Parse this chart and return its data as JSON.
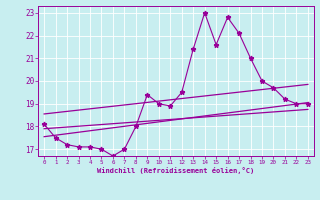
{
  "xlabel": "Windchill (Refroidissement éolien,°C)",
  "background_color": "#c8eef0",
  "line_color": "#990099",
  "xlim": [
    -0.5,
    23.5
  ],
  "ylim": [
    16.7,
    23.3
  ],
  "yticks": [
    17,
    18,
    19,
    20,
    21,
    22,
    23
  ],
  "xticks": [
    0,
    1,
    2,
    3,
    4,
    5,
    6,
    7,
    8,
    9,
    10,
    11,
    12,
    13,
    14,
    15,
    16,
    17,
    18,
    19,
    20,
    21,
    22,
    23
  ],
  "scatter_x": [
    0,
    1,
    2,
    3,
    4,
    5,
    6,
    7,
    8,
    9,
    10,
    11,
    12,
    13,
    14,
    15,
    16,
    17,
    18,
    19,
    20,
    21,
    22,
    23
  ],
  "scatter_y": [
    18.1,
    17.5,
    17.2,
    17.1,
    17.1,
    17.0,
    16.7,
    17.0,
    18.0,
    19.4,
    19.0,
    18.9,
    19.5,
    21.4,
    23.0,
    21.6,
    22.8,
    22.1,
    21.0,
    20.0,
    19.7,
    19.2,
    19.0,
    19.0
  ],
  "reg_line1_x": [
    0,
    23
  ],
  "reg_line1_y": [
    17.55,
    19.05
  ],
  "reg_line2_x": [
    0,
    23
  ],
  "reg_line2_y": [
    17.9,
    18.75
  ],
  "reg_line3_x": [
    0,
    23
  ],
  "reg_line3_y": [
    18.55,
    19.85
  ]
}
